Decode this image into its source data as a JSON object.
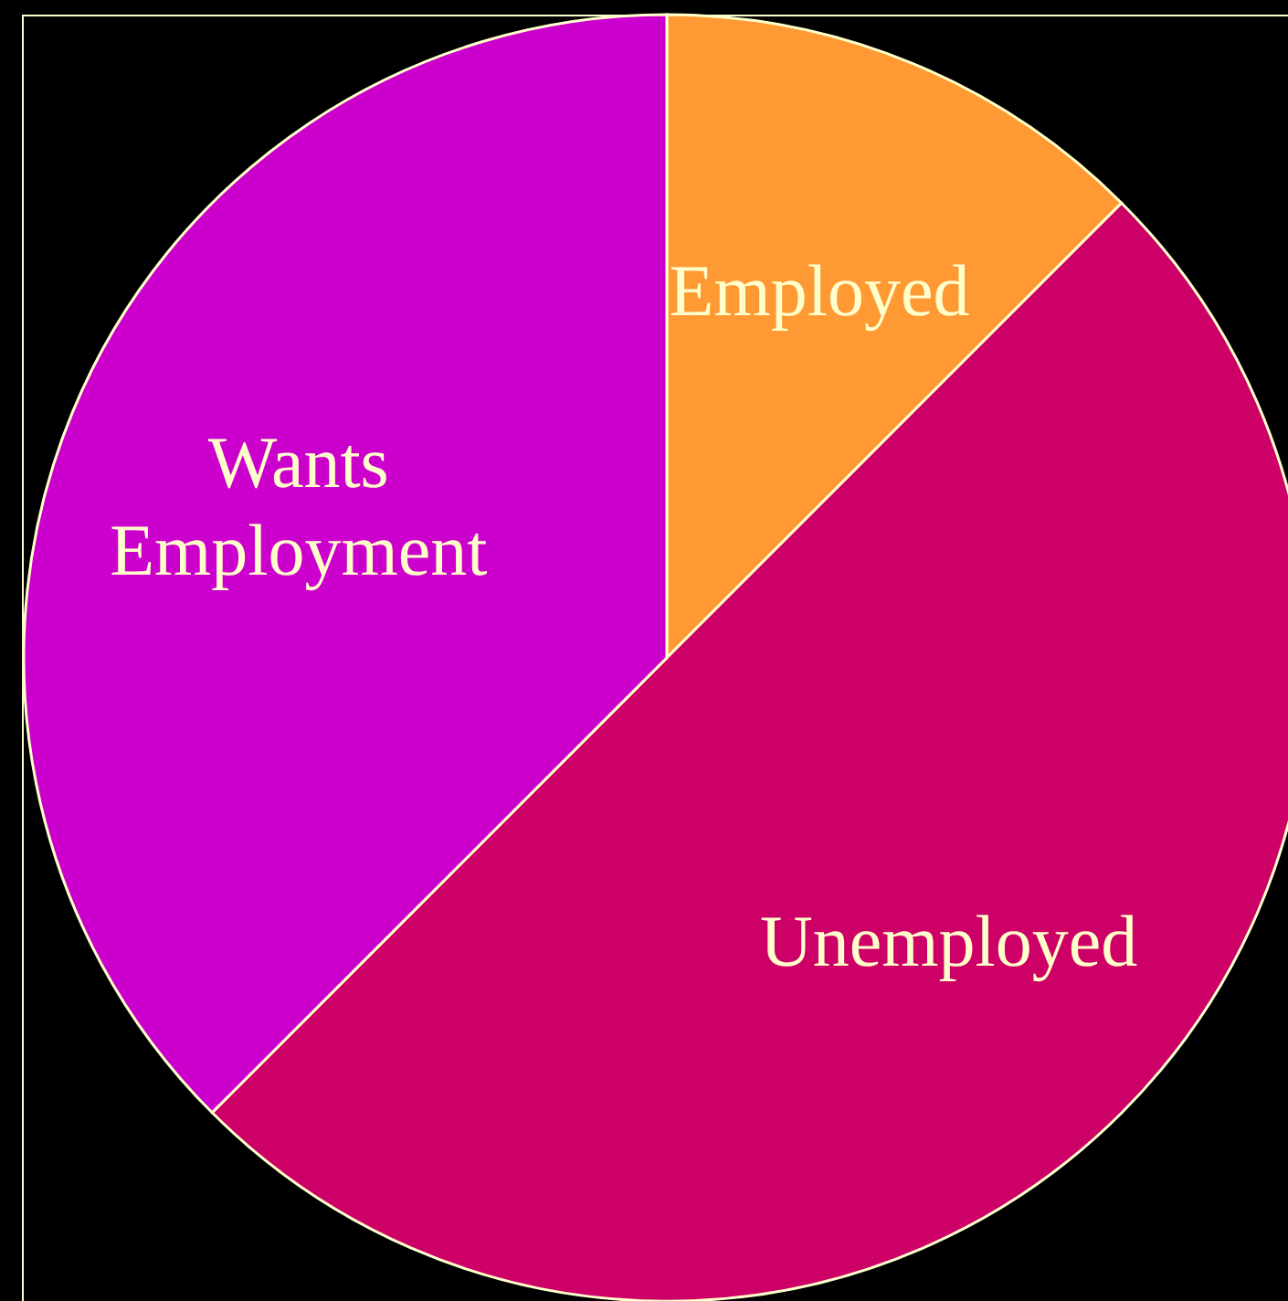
{
  "chart_data": {
    "type": "pie",
    "categories": [
      "Employed",
      "Unemployed",
      "Wants Employment"
    ],
    "values": [
      12.5,
      50,
      37.5
    ],
    "colors": [
      "#ff9933",
      "#cc0066",
      "#cc00cc"
    ]
  }
}
